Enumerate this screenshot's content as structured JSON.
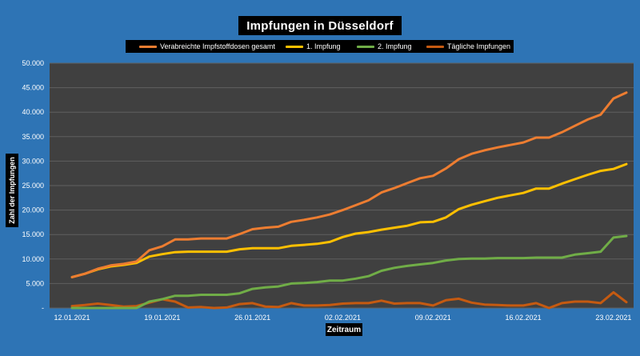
{
  "chart_data": {
    "type": "line",
    "title": "Impfungen in Düsseldorf",
    "xlabel": "Zeitraum",
    "ylabel": "Zahl der Impfungen",
    "ylim": [
      0,
      50000
    ],
    "yticks": [
      "-",
      "5.000",
      "10.000",
      "15.000",
      "20.000",
      "25.000",
      "30.000",
      "35.000",
      "40.000",
      "45.000",
      "50.000"
    ],
    "xticks": [
      "12.01.2021",
      "19.01.2021",
      "26.01.2021",
      "02.02.2021",
      "09.02.2021",
      "16.02.2021",
      "23.02.2021"
    ],
    "x_start": "12.01.2021",
    "x_end": "25.02.2021",
    "grid": true,
    "legend_position": "top",
    "series": [
      {
        "name": "Verabreichte Impfstoffdosen gesamt",
        "color": "#ed7d31",
        "values": [
          6300,
          7000,
          8000,
          8700,
          9000,
          9500,
          11800,
          12600,
          14000,
          14000,
          14200,
          14200,
          14200,
          15100,
          16100,
          16400,
          16600,
          17600,
          18000,
          18500,
          19100,
          20000,
          21000,
          22000,
          23600,
          24500,
          25500,
          26500,
          27000,
          28500,
          30400,
          31500,
          32200,
          32800,
          33300,
          33800,
          34800,
          34800,
          35900,
          37200,
          38500,
          39500,
          42800,
          44000
        ]
      },
      {
        "name": "1. Impfung",
        "color": "#ffc000",
        "values": [
          6300,
          7000,
          7900,
          8500,
          8800,
          9200,
          10500,
          11000,
          11400,
          11500,
          11500,
          11500,
          11500,
          12000,
          12200,
          12200,
          12200,
          12700,
          12900,
          13100,
          13500,
          14500,
          15200,
          15500,
          16000,
          16400,
          16800,
          17500,
          17600,
          18500,
          20200,
          21100,
          21800,
          22500,
          23000,
          23500,
          24400,
          24400,
          25400,
          26300,
          27200,
          28000,
          28400,
          29400
        ]
      },
      {
        "name": "2. Impfung",
        "color": "#70ad47",
        "values": [
          0,
          0,
          0,
          0,
          0,
          0,
          1300,
          1800,
          2500,
          2500,
          2700,
          2700,
          2700,
          3000,
          3900,
          4200,
          4400,
          5000,
          5100,
          5300,
          5600,
          5600,
          6000,
          6500,
          7600,
          8200,
          8600,
          8900,
          9200,
          9700,
          10000,
          10100,
          10100,
          10200,
          10200,
          10200,
          10300,
          10300,
          10300,
          10900,
          11200,
          11500,
          14400,
          14700
        ]
      },
      {
        "name": "Tägliche Impfungen",
        "color": "#c55a11",
        "values": [
          400,
          600,
          900,
          600,
          300,
          400,
          1100,
          1800,
          1300,
          100,
          200,
          0,
          100,
          800,
          1000,
          300,
          200,
          1000,
          500,
          500,
          600,
          900,
          1000,
          1000,
          1500,
          900,
          1000,
          1000,
          500,
          1600,
          1900,
          1100,
          700,
          600,
          500,
          500,
          1000,
          0,
          1000,
          1300,
          1300,
          1000,
          3200,
          1200
        ]
      }
    ]
  }
}
